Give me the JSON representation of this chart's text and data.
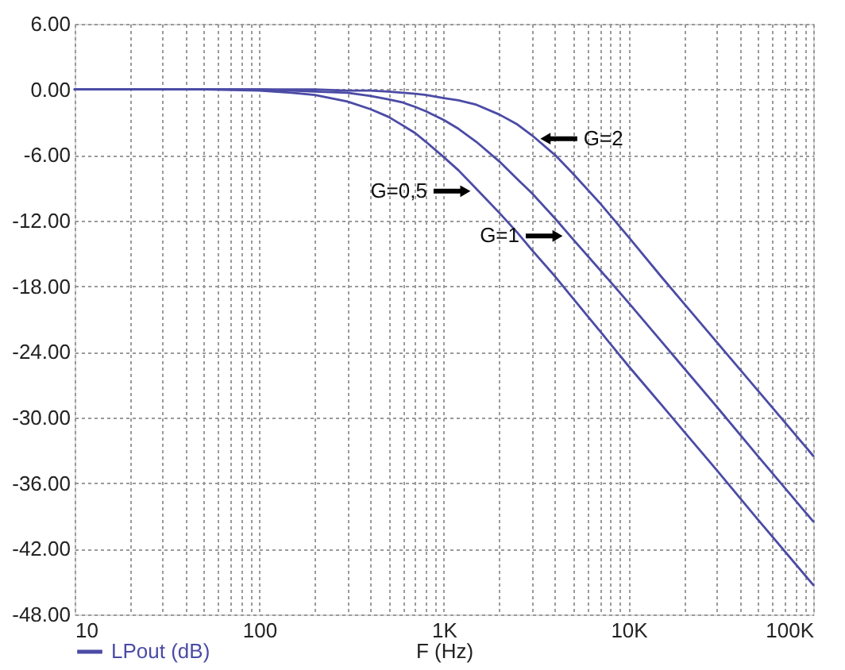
{
  "chart_data": {
    "type": "line",
    "xlabel": "F (Hz)",
    "log": "x",
    "grid": true,
    "legend": "bottom left",
    "x": [
      10,
      20,
      50,
      100,
      150,
      200,
      300,
      400,
      500,
      600,
      700,
      800,
      1000,
      1200,
      1500,
      2000,
      2500,
      3000,
      4000,
      5000,
      7000,
      10000,
      15000,
      20000,
      30000,
      50000,
      100000
    ],
    "xlim": [
      10,
      100000
    ],
    "xticks": [
      10,
      {
        "value": 20,
        "label": null
      },
      {
        "value": 30,
        "label": null
      },
      {
        "value": 40,
        "label": null
      },
      {
        "value": 50,
        "label": null
      },
      {
        "value": 60,
        "label": null
      },
      {
        "value": 70,
        "label": null
      },
      {
        "value": 80,
        "label": null
      },
      {
        "value": 90,
        "label": null
      },
      100,
      {
        "value": 200,
        "label": null
      },
      {
        "value": 300,
        "label": null
      },
      {
        "value": 400,
        "label": null
      },
      {
        "value": 500,
        "label": null
      },
      {
        "value": 600,
        "label": null
      },
      {
        "value": 700,
        "label": null
      },
      {
        "value": 800,
        "label": null
      },
      {
        "value": 900,
        "label": null
      },
      {
        "value": 1000,
        "label": "1K"
      },
      {
        "value": 2000,
        "label": null
      },
      {
        "value": 3000,
        "label": null
      },
      {
        "value": 4000,
        "label": null
      },
      {
        "value": 5000,
        "label": null
      },
      {
        "value": 6000,
        "label": null
      },
      {
        "value": 7000,
        "label": null
      },
      {
        "value": 8000,
        "label": null
      },
      {
        "value": 9000,
        "label": null
      },
      {
        "value": 10000,
        "label": "10K"
      },
      {
        "value": 20000,
        "label": null
      },
      {
        "value": 30000,
        "label": null
      },
      {
        "value": 40000,
        "label": null
      },
      {
        "value": 50000,
        "label": null
      },
      {
        "value": 60000,
        "label": null
      },
      {
        "value": 70000,
        "label": null
      },
      {
        "value": 80000,
        "label": null
      },
      {
        "value": 90000,
        "label": null
      },
      {
        "value": 100000,
        "label": "100K"
      }
    ],
    "ylim": [
      -48,
      6
    ],
    "yticks": [
      {
        "value": 6,
        "label": "6.00"
      },
      {
        "value": 0,
        "label": "0.00"
      },
      {
        "value": -6,
        "label": "-6.00"
      },
      {
        "value": -12,
        "label": "-12.00"
      },
      {
        "value": -18,
        "label": "-18.00"
      },
      {
        "value": -24,
        "label": "-24.00"
      },
      {
        "value": -30,
        "label": "-30.00"
      },
      {
        "value": -36,
        "label": "-36.00"
      },
      {
        "value": -42,
        "label": "-42.00"
      },
      {
        "value": -48,
        "label": "-48.00"
      }
    ],
    "series": [
      {
        "name": "LPout (dB)",
        "color": "#4b4ba6",
        "values": [
          0.0,
          0.0,
          0.0,
          -0.1,
          -0.3,
          -0.5,
          -1.1,
          -1.8,
          -2.5,
          -3.3,
          -4.0,
          -4.8,
          -6.2,
          -7.4,
          -9.1,
          -11.3,
          -13.1,
          -14.7,
          -17.1,
          -19.1,
          -22.1,
          -25.3,
          -28.8,
          -31.3,
          -34.8,
          -39.3,
          -45.3
        ]
      },
      {
        "color": "#4b4ba6",
        "values": [
          0.0,
          0.0,
          0.0,
          0.0,
          -0.1,
          -0.2,
          -0.3,
          -0.6,
          -0.9,
          -1.2,
          -1.6,
          -2.0,
          -2.8,
          -3.6,
          -4.8,
          -6.6,
          -8.2,
          -9.5,
          -11.8,
          -13.7,
          -16.5,
          -19.5,
          -23.0,
          -25.5,
          -29.0,
          -33.5,
          -39.5
        ]
      },
      {
        "color": "#4b4ba6",
        "values": [
          0.0,
          0.0,
          0.0,
          0.0,
          0.0,
          0.0,
          -0.1,
          -0.1,
          -0.2,
          -0.3,
          -0.4,
          -0.5,
          -0.8,
          -1.0,
          -1.4,
          -2.3,
          -3.2,
          -4.2,
          -6.0,
          -7.7,
          -10.4,
          -13.5,
          -17.1,
          -19.6,
          -23.1,
          -27.5,
          -33.5
        ]
      }
    ],
    "annotations": [
      {
        "text": "G=2",
        "x": 3150,
        "y": -4.5
      },
      {
        "text": "G=0,5",
        "x": 1530,
        "y": -9.3
      },
      {
        "text": "G=1",
        "x": 4830,
        "y": -13.4
      }
    ]
  }
}
